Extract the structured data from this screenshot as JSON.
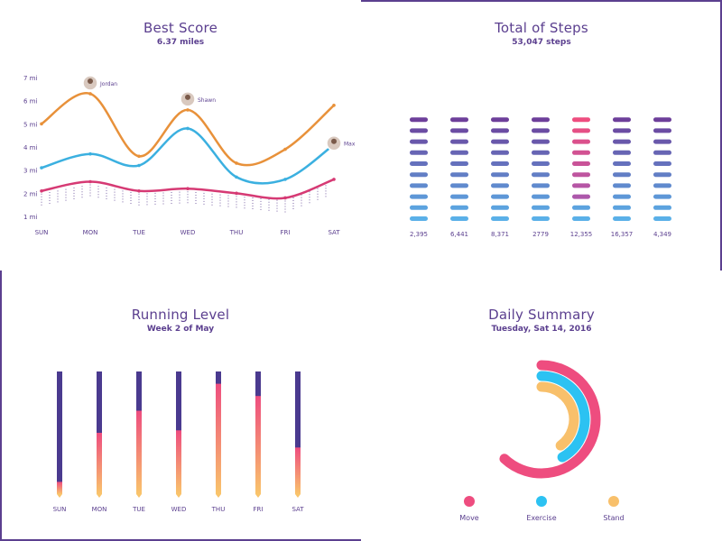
{
  "colors": {
    "purple": "#5b3f8f",
    "orange": "#e8913a",
    "blue": "#3bb0e0",
    "magenta": "#d63a74",
    "pink": "#ee4d7f",
    "cyan": "#2cc2f2",
    "yellow": "#f8c06b"
  },
  "best_score": {
    "title": "Best Score",
    "subtitle": "6.37 miles",
    "people": [
      {
        "name": "Jordan",
        "icon": "avatar-photo"
      },
      {
        "name": "Shawn",
        "icon": "avatar-photo"
      },
      {
        "name": "Max",
        "icon": "avatar-photo"
      }
    ]
  },
  "total_steps": {
    "title": "Total of Steps",
    "subtitle": "53,047 steps"
  },
  "running_level": {
    "title": "Running Level",
    "subtitle": "Week 2 of May"
  },
  "daily_summary": {
    "title": "Daily Summary",
    "subtitle": "Tuesday, Sat 14, 2016",
    "legend": [
      {
        "label": "Move",
        "color": "#ee4d7f"
      },
      {
        "label": "Exercise",
        "color": "#2cc2f2"
      },
      {
        "label": "Stand",
        "color": "#f8c06b"
      }
    ]
  },
  "chart_data": [
    {
      "type": "line",
      "title": "Best Score",
      "subtitle": "6.37 miles",
      "x": [
        "SUN",
        "MON",
        "TUE",
        "WED",
        "THU",
        "FRI",
        "SAT"
      ],
      "ylim": [
        1,
        7
      ],
      "yticks": [
        "1 mi",
        "2 mi",
        "3 mi",
        "4 mi",
        "5 mi",
        "6 mi",
        "7 mi"
      ],
      "series": [
        {
          "color": "#e8913a",
          "values": [
            5.0,
            6.3,
            3.6,
            5.6,
            3.3,
            3.9,
            5.8
          ]
        },
        {
          "color": "#3bb0e0",
          "values": [
            3.1,
            3.7,
            3.2,
            4.8,
            2.7,
            2.6,
            4.1
          ]
        },
        {
          "color": "#d63a74",
          "values": [
            2.1,
            2.5,
            2.1,
            2.2,
            2.0,
            1.8,
            2.6
          ]
        }
      ],
      "annotations": [
        {
          "label": "Jordan",
          "x": "MON",
          "y": 6.3
        },
        {
          "label": "Shawn",
          "x": "WED",
          "y": 5.6
        },
        {
          "label": "Max",
          "x": "SAT",
          "y": 3.7
        }
      ]
    },
    {
      "type": "bar",
      "title": "Total of Steps",
      "subtitle": "53,047 steps",
      "categories": [
        "SUN",
        "MON",
        "TUE",
        "WED",
        "THU",
        "FRI",
        "SAT"
      ],
      "values": [
        2395,
        6441,
        8371,
        2779,
        12355,
        16357,
        4349
      ],
      "value_labels": [
        "2,395",
        "6,441",
        "8,371",
        "2779",
        "12,355",
        "16,357",
        "4,349"
      ],
      "segments": 10
    },
    {
      "type": "bar",
      "title": "Running Level",
      "subtitle": "Week 2 of May",
      "categories": [
        "SUN",
        "MON",
        "TUE",
        "WED",
        "THU",
        "FRI",
        "SAT"
      ],
      "values": [
        0.1,
        0.5,
        0.68,
        0.52,
        0.9,
        0.8,
        0.38
      ],
      "ylim": [
        0,
        1
      ]
    },
    {
      "type": "pie",
      "title": "Daily Summary",
      "subtitle": "Tuesday, Sat 14, 2016",
      "categories": [
        "Move",
        "Exercise",
        "Stand"
      ],
      "values": [
        0.62,
        0.42,
        0.4
      ]
    }
  ]
}
